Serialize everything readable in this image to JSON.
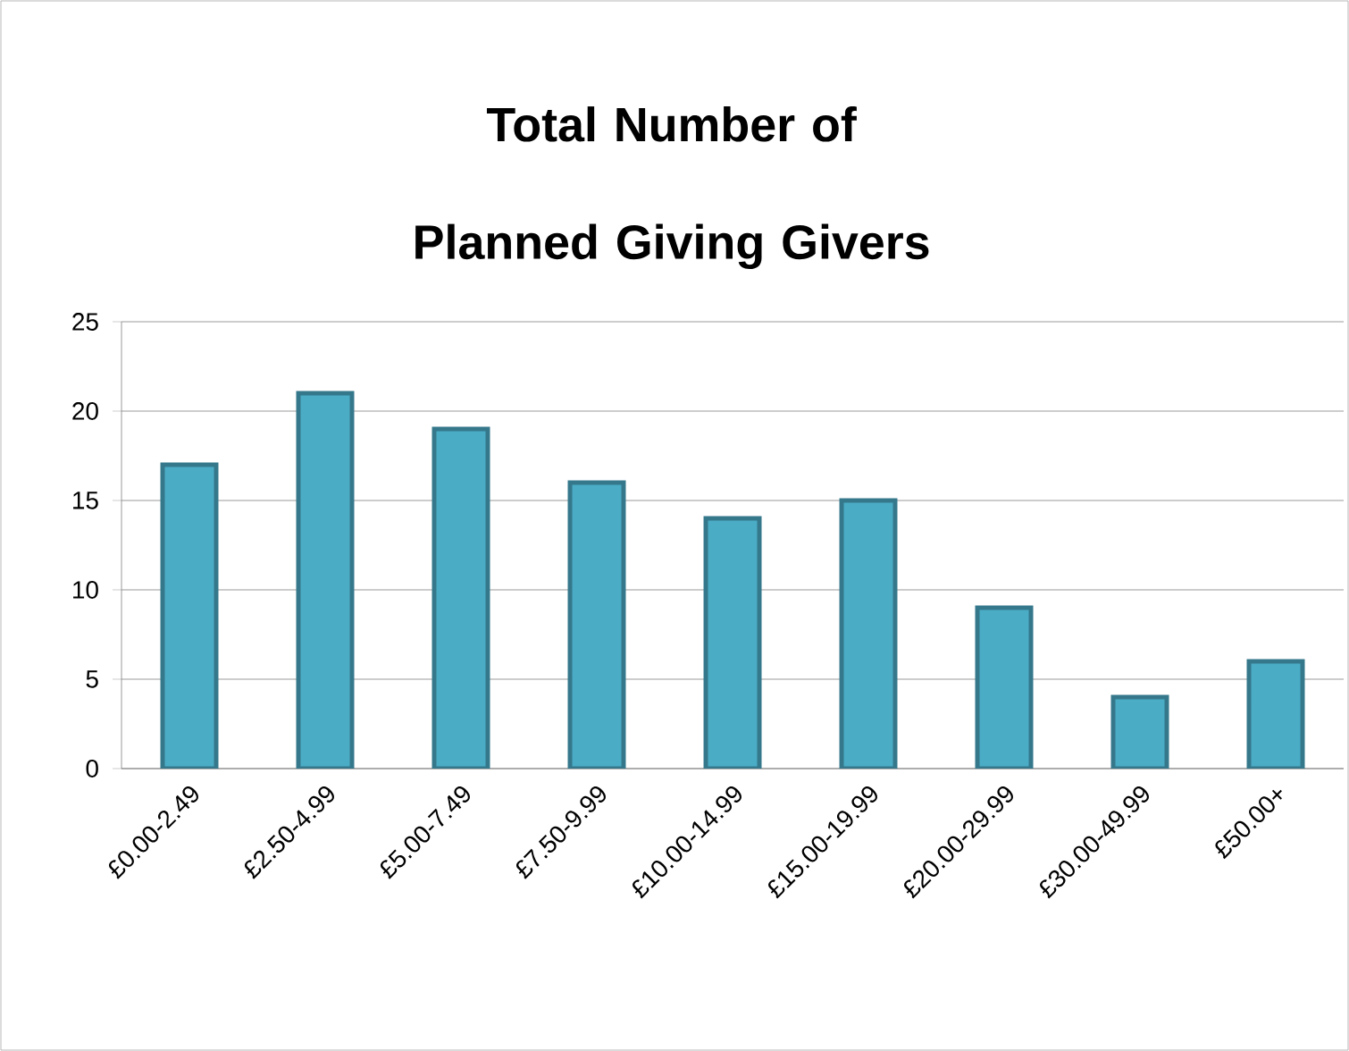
{
  "chart_data": {
    "type": "bar",
    "title": "Total Number of Planned Giving Givers",
    "categories": [
      "£0.00-2.49",
      "£2.50-4.99",
      "£5.00-7.49",
      "£7.50-9.99",
      "£10.00-14.99",
      "£15.00-19.99",
      "£20.00-29.99",
      "£30.00-49.99",
      "£50.00+"
    ],
    "values": [
      17,
      21,
      19,
      16,
      14,
      15,
      9,
      4,
      6
    ],
    "color": "#4bacc6",
    "ylim": [
      0,
      25
    ],
    "yticks": [
      0,
      5,
      10,
      15,
      20,
      25
    ],
    "grid": "y"
  }
}
